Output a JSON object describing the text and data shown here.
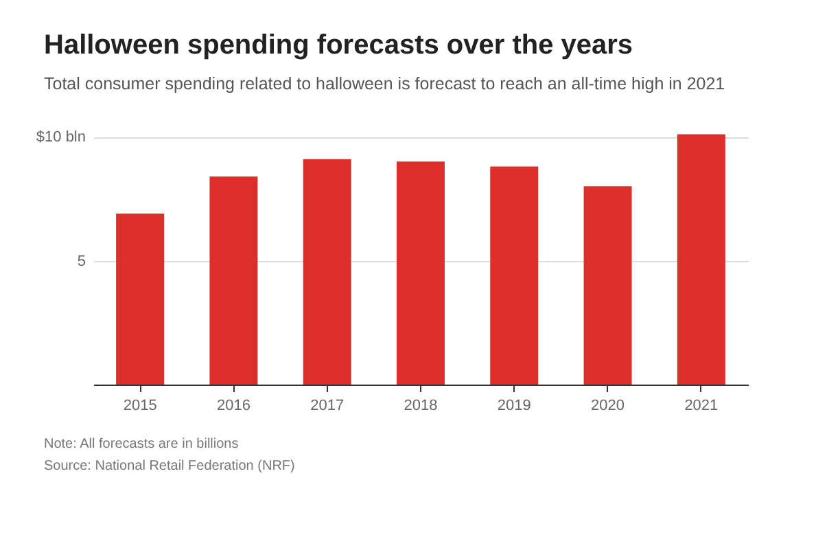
{
  "chart_data": {
    "type": "bar",
    "title": "Halloween spending forecasts over the years",
    "subtitle": "Total consumer spending related to halloween is forecast to reach an all-time high in 2021",
    "categories": [
      "2015",
      "2016",
      "2017",
      "2018",
      "2019",
      "2020",
      "2021"
    ],
    "values": [
      6.9,
      8.4,
      9.1,
      9.0,
      8.8,
      8.0,
      10.1
    ],
    "color": "#dc2f2a",
    "ylim": [
      0,
      10.2
    ],
    "yticks": [
      5,
      {
        "value": 10,
        "label": "$10 bln"
      }
    ],
    "grid": true,
    "annotations": [
      "Note: All forecasts are in billions",
      "Source: National Retail Federation (NRF)"
    ]
  }
}
